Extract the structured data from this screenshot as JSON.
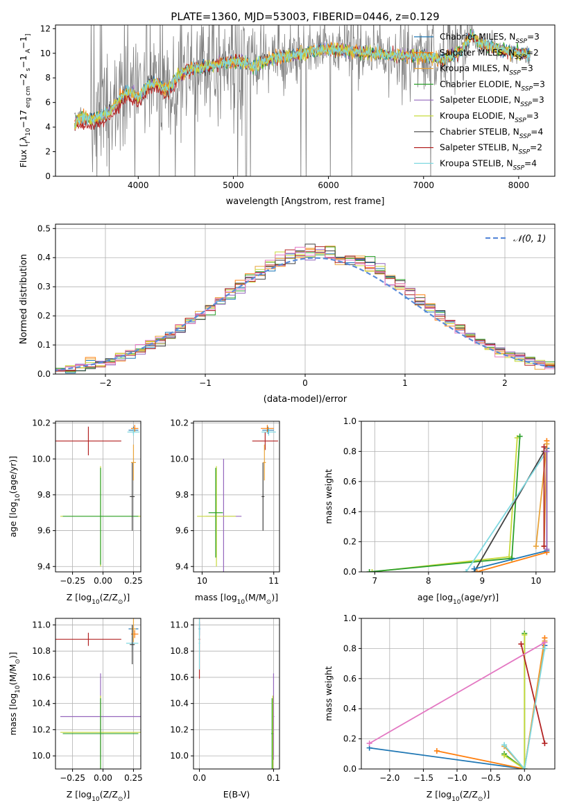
{
  "figure": {
    "title": "PLATE=1360, MJD=53003, FIBERID=0446, z=0.129",
    "models": [
      {
        "name": "Chabrier MILES, N",
        "sub": "SSP",
        "suffix": "=3",
        "color": "#1f77b4"
      },
      {
        "name": "Salpeter MILES, N",
        "sub": "SSP",
        "suffix": "=2",
        "color": "#ff7f0e"
      },
      {
        "name": "Kroupa MILES, N",
        "sub": "SSP",
        "suffix": "=3",
        "color": "#e8a33a"
      },
      {
        "name": "Chabrier ELODIE, N",
        "sub": "SSP",
        "suffix": "=3",
        "color": "#2ca02c"
      },
      {
        "name": "Salpeter ELODIE, N",
        "sub": "SSP",
        "suffix": "=3",
        "color": "#9467bd"
      },
      {
        "name": "Kroupa ELODIE, N",
        "sub": "SSP",
        "suffix": "=3",
        "color": "#c7d93a"
      },
      {
        "name": "Chabrier STELIB, N",
        "sub": "SSP",
        "suffix": "=4",
        "color": "#404040"
      },
      {
        "name": "Salpeter STELIB, N",
        "sub": "SSP",
        "suffix": "=2",
        "color": "#b22222"
      },
      {
        "name": "Kroupa STELIB, N",
        "sub": "SSP",
        "suffix": "=4",
        "color": "#7fd8e0"
      }
    ],
    "colors": {
      "data": "#808080",
      "gauss": "#5b8bd9",
      "grid": "#b0b0b0"
    }
  },
  "chart_data": [
    {
      "id": "spectrum",
      "type": "line",
      "xlabel": "wavelength [Angstrom, rest frame]",
      "ylabel_parts": [
        "Flux [",
        "f",
        "λ",
        "10",
        "−17",
        " erg cm",
        "−2",
        " s",
        "−1",
        " A",
        "−1",
        "]"
      ],
      "xlim": [
        3130,
        8380
      ],
      "ylim": [
        0,
        12.3
      ],
      "xticks": [
        4000,
        5000,
        6000,
        7000,
        8000
      ],
      "yticks": [
        0,
        2,
        4,
        6,
        8,
        10,
        12
      ],
      "x_range": [
        3330,
        8120
      ],
      "anchors": [
        [
          3330,
          4.3
        ],
        [
          3400,
          4.9
        ],
        [
          3500,
          4.6
        ],
        [
          3600,
          4.9
        ],
        [
          3700,
          5.2
        ],
        [
          3800,
          6.3
        ],
        [
          3900,
          7.0
        ],
        [
          4000,
          6.3
        ],
        [
          4100,
          7.4
        ],
        [
          4200,
          7.6
        ],
        [
          4300,
          6.9
        ],
        [
          4400,
          8.0
        ],
        [
          4500,
          8.6
        ],
        [
          4700,
          8.9
        ],
        [
          4900,
          9.2
        ],
        [
          5100,
          9.4
        ],
        [
          5200,
          8.9
        ],
        [
          5400,
          9.6
        ],
        [
          5600,
          9.8
        ],
        [
          5800,
          10.1
        ],
        [
          6000,
          10.3
        ],
        [
          6200,
          10.2
        ],
        [
          6400,
          10.0
        ],
        [
          6600,
          9.9
        ],
        [
          6800,
          9.8
        ],
        [
          7000,
          9.8
        ],
        [
          7200,
          9.5
        ],
        [
          7400,
          10.2
        ],
        [
          7500,
          11.5
        ],
        [
          7600,
          10.8
        ],
        [
          7800,
          10.3
        ],
        [
          8000,
          10.0
        ],
        [
          8120,
          9.9
        ]
      ],
      "grid": false
    },
    {
      "id": "residuals",
      "type": "histogram",
      "xlabel": "(data-model)/error",
      "ylabel": "Normed distribution",
      "xlim": [
        -2.5,
        2.5
      ],
      "ylim": [
        0,
        0.515
      ],
      "xticks": [
        -2,
        -1,
        0,
        1,
        2
      ],
      "yticks": [
        0.0,
        0.1,
        0.2,
        0.3,
        0.4,
        0.5
      ],
      "bin_width": 0.1,
      "legend": {
        "label": "𝒩(0, 1)",
        "position": "top-right"
      },
      "gaussian": {
        "mean": 0.1,
        "sigma": 1.0
      },
      "grid": true
    },
    {
      "id": "age_vs_Z",
      "type": "errorbar",
      "xlabel_parts": [
        "Z [log",
        "10",
        "(Z/Z",
        "⊙",
        ")]"
      ],
      "ylabel_parts": [
        "age  [log",
        "10",
        "(age/yr)]"
      ],
      "xlim": [
        -0.39,
        0.31
      ],
      "ylim": [
        9.37,
        10.21
      ],
      "xticks": [
        -0.25,
        0.0,
        0.25
      ],
      "xtick_labels": [
        "−0.25",
        "0.00",
        "0.25"
      ],
      "yticks": [
        9.4,
        9.6,
        9.8,
        10.0,
        10.2
      ],
      "points": [
        {
          "m": 7,
          "x": -0.12,
          "y": 10.1,
          "xe": 0.27,
          "ye": 0.08
        },
        {
          "m": 5,
          "x": -0.02,
          "y": 9.68,
          "xe": 0.33,
          "ye": 0.28
        },
        {
          "m": 3,
          "x": -0.02,
          "y": 9.68,
          "xe": 0.31,
          "ye": 0.27
        },
        {
          "m": 0,
          "x": 0.25,
          "y": 10.16,
          "xe": 0.04,
          "ye": 0.02
        },
        {
          "m": 1,
          "x": 0.26,
          "y": 10.17,
          "xe": 0.03,
          "ye": 0.02
        },
        {
          "m": 8,
          "x": 0.25,
          "y": 10.15,
          "xe": 0.05,
          "ye": 0.02
        },
        {
          "m": 6,
          "x": 0.24,
          "y": 9.79,
          "xe": 0.02,
          "ye": 0.19
        },
        {
          "m": 2,
          "x": 0.25,
          "y": 9.98,
          "xe": 0.02,
          "ye": 0.1
        }
      ]
    },
    {
      "id": "age_vs_mass",
      "type": "errorbar",
      "xlabel_parts": [
        "mass [log",
        "10",
        "(M/M",
        "⊙",
        ")]"
      ],
      "ylabel_parts": [
        "",
        "",
        ""
      ],
      "xlim": [
        9.88,
        11.08
      ],
      "ylim": [
        9.37,
        10.21
      ],
      "xticks": [
        10,
        11
      ],
      "xtick_labels": [
        "10",
        "11"
      ],
      "yticks": [
        9.4,
        9.6,
        9.8,
        10.0,
        10.2
      ],
      "points": [
        {
          "m": 7,
          "x": 10.88,
          "y": 10.1,
          "xe": 0.18,
          "ye": 0.05
        },
        {
          "m": 4,
          "x": 10.3,
          "y": 9.68,
          "xe": 0.25,
          "ye": 0.32
        },
        {
          "m": 5,
          "x": 10.2,
          "y": 9.68,
          "xe": 0.27,
          "ye": 0.28
        },
        {
          "m": 3,
          "x": 10.19,
          "y": 9.7,
          "xe": 0.1,
          "ye": 0.25
        },
        {
          "m": 0,
          "x": 10.92,
          "y": 10.16,
          "xe": 0.08,
          "ye": 0.02
        },
        {
          "m": 8,
          "x": 10.93,
          "y": 10.15,
          "xe": 0.1,
          "ye": 0.02
        },
        {
          "m": 1,
          "x": 10.91,
          "y": 10.17,
          "xe": 0.09,
          "ye": 0.02
        },
        {
          "m": 6,
          "x": 10.85,
          "y": 9.79,
          "xe": 0.02,
          "ye": 0.19
        },
        {
          "m": 2,
          "x": 10.87,
          "y": 9.98,
          "xe": 0.02,
          "ye": 0.1
        }
      ]
    },
    {
      "id": "massweight_vs_age",
      "type": "line",
      "xlabel_parts": [
        "age  [log",
        "10",
        "(age/yr)]"
      ],
      "ylabel": "mass weight",
      "xlim": [
        6.75,
        10.35
      ],
      "ylim": [
        0,
        1.0
      ],
      "xticks": [
        7,
        8,
        9,
        10
      ],
      "xtick_labels": [
        "7",
        "8",
        "9",
        "10"
      ],
      "yticks": [
        0.0,
        0.2,
        0.4,
        0.6,
        0.8,
        1.0
      ],
      "series": [
        {
          "m": 5,
          "x": [
            6.95,
            9.5,
            9.65
          ],
          "y": [
            0.0,
            0.1,
            0.89
          ]
        },
        {
          "m": 3,
          "x": [
            6.9,
            9.55,
            9.7
          ],
          "y": [
            0.0,
            0.09,
            0.9
          ]
        },
        {
          "m": 6,
          "x": [
            8.85,
            10.15
          ],
          "y": [
            0.0,
            0.8
          ]
        },
        {
          "m": 8,
          "x": [
            8.7,
            10.2
          ],
          "y": [
            0.0,
            0.8
          ]
        },
        {
          "m": 0,
          "x": [
            8.85,
            10.2,
            10.2
          ],
          "y": [
            0.02,
            0.14,
            0.82
          ]
        },
        {
          "m": 1,
          "x": [
            8.9,
            10.2,
            10.2
          ],
          "y": [
            0.0,
            0.13,
            0.87
          ]
        },
        {
          "m": 2,
          "x": [
            10.0,
            10.2,
            10.15
          ],
          "y": [
            0.17,
            0.85,
            0.17
          ]
        },
        {
          "m": 7,
          "x": [
            10.15,
            10.15
          ],
          "y": [
            0.17,
            0.83
          ]
        },
        {
          "m": 4,
          "x": [
            10.2,
            10.2
          ],
          "y": [
            0.15,
            0.8
          ]
        }
      ]
    },
    {
      "id": "mass_vs_Z",
      "type": "errorbar",
      "xlabel_parts": [
        "Z [log",
        "10",
        "(Z/Z",
        "⊙",
        ")]"
      ],
      "ylabel_parts": [
        "mass [log",
        "10",
        "(M/M",
        "⊙",
        ")]"
      ],
      "xlim": [
        -0.39,
        0.31
      ],
      "ylim": [
        9.9,
        11.05
      ],
      "xticks": [
        -0.25,
        0.0,
        0.25
      ],
      "xtick_labels": [
        "−0.25",
        "0.00",
        "0.25"
      ],
      "yticks": [
        10.0,
        10.2,
        10.4,
        10.6,
        10.8,
        11.0
      ],
      "points": [
        {
          "m": 7,
          "x": -0.12,
          "y": 10.89,
          "xe": 0.27,
          "ye": 0.05
        },
        {
          "m": 4,
          "x": -0.02,
          "y": 10.3,
          "xe": 0.33,
          "ye": 0.33
        },
        {
          "m": 5,
          "x": -0.02,
          "y": 10.18,
          "xe": 0.33,
          "ye": 0.28
        },
        {
          "m": 3,
          "x": -0.02,
          "y": 10.17,
          "xe": 0.31,
          "ye": 0.27
        },
        {
          "m": 0,
          "x": 0.25,
          "y": 10.97,
          "xe": 0.04,
          "ye": 0.03
        },
        {
          "m": 1,
          "x": 0.26,
          "y": 10.93,
          "xe": 0.03,
          "ye": 0.03
        },
        {
          "m": 8,
          "x": 0.24,
          "y": 10.86,
          "xe": 0.05,
          "ye": 0.05
        },
        {
          "m": 2,
          "x": 0.25,
          "y": 10.97,
          "xe": 0.02,
          "ye": 0.1
        },
        {
          "m": 6,
          "x": 0.24,
          "y": 10.85,
          "xe": 0.02,
          "ye": 0.15
        }
      ]
    },
    {
      "id": "mass_vs_ebv",
      "type": "errorbar",
      "xlabel": "E(B-V)",
      "ylabel_parts": [
        "",
        "",
        ""
      ],
      "xlim": [
        -0.008,
        0.108
      ],
      "ylim": [
        9.9,
        11.05
      ],
      "xticks": [
        0.0,
        0.1
      ],
      "xtick_labels": [
        "0.0",
        "0.1"
      ],
      "yticks": [
        10.0,
        10.2,
        10.4,
        10.6,
        10.8,
        11.0
      ],
      "points": [
        {
          "m": 7,
          "x": 0.0,
          "y": 10.89,
          "xe": 0.001,
          "ye": 0.3
        },
        {
          "m": 0,
          "x": 0.0,
          "y": 10.97,
          "xe": 0.001,
          "ye": 0.05
        },
        {
          "m": 8,
          "x": 0.0,
          "y": 10.86,
          "xe": 0.001,
          "ye": 0.2
        },
        {
          "m": 4,
          "x": 0.1,
          "y": 10.3,
          "xe": 0.001,
          "ye": 0.33
        },
        {
          "m": 5,
          "x": 0.099,
          "y": 10.18,
          "xe": 0.001,
          "ye": 0.28
        },
        {
          "m": 3,
          "x": 0.098,
          "y": 10.17,
          "xe": 0.001,
          "ye": 0.27
        }
      ]
    },
    {
      "id": "massweight_vs_Z",
      "type": "line",
      "xlabel_parts": [
        "Z [log",
        "10",
        "(Z/Z",
        "⊙",
        ")]"
      ],
      "ylabel": "mass weight",
      "xlim": [
        -2.42,
        0.45
      ],
      "ylim": [
        0,
        1.0
      ],
      "xticks": [
        -2.0,
        -1.5,
        -1.0,
        -0.5,
        0.0
      ],
      "xtick_labels": [
        "−2.0",
        "−1.5",
        "−1.0",
        "−0.5",
        "0.0"
      ],
      "yticks": [
        0.0,
        0.2,
        0.4,
        0.6,
        0.8,
        1.0
      ],
      "series": [
        {
          "m": 0,
          "x": [
            -2.3,
            0.0,
            0.3
          ],
          "y": [
            0.14,
            0.0,
            0.82
          ]
        },
        {
          "m": 1,
          "x": [
            -1.3,
            0.0,
            0.3
          ],
          "y": [
            0.12,
            0.0,
            0.87
          ]
        },
        {
          "m": 2,
          "x": [
            -0.3,
            0.0,
            0.3
          ],
          "y": [
            0.15,
            0.0,
            0.85
          ]
        },
        {
          "m": 3,
          "x": [
            -0.3,
            0.0,
            0.0
          ],
          "y": [
            0.1,
            0.0,
            0.9
          ]
        },
        {
          "m": 5,
          "x": [
            -0.3,
            0.0,
            0.0
          ],
          "y": [
            0.09,
            0.0,
            0.89
          ]
        },
        {
          "m": 7,
          "x": [
            -0.05,
            0.3
          ],
          "y": [
            0.83,
            0.17
          ]
        },
        {
          "m": 8,
          "x": [
            -0.3,
            0.0,
            0.3
          ],
          "y": [
            0.16,
            0.0,
            0.8
          ]
        },
        {
          "m": 9,
          "x": [
            -2.3,
            0.3
          ],
          "y": [
            0.17,
            0.84
          ]
        }
      ],
      "extra_color": "#e377c2"
    }
  ]
}
